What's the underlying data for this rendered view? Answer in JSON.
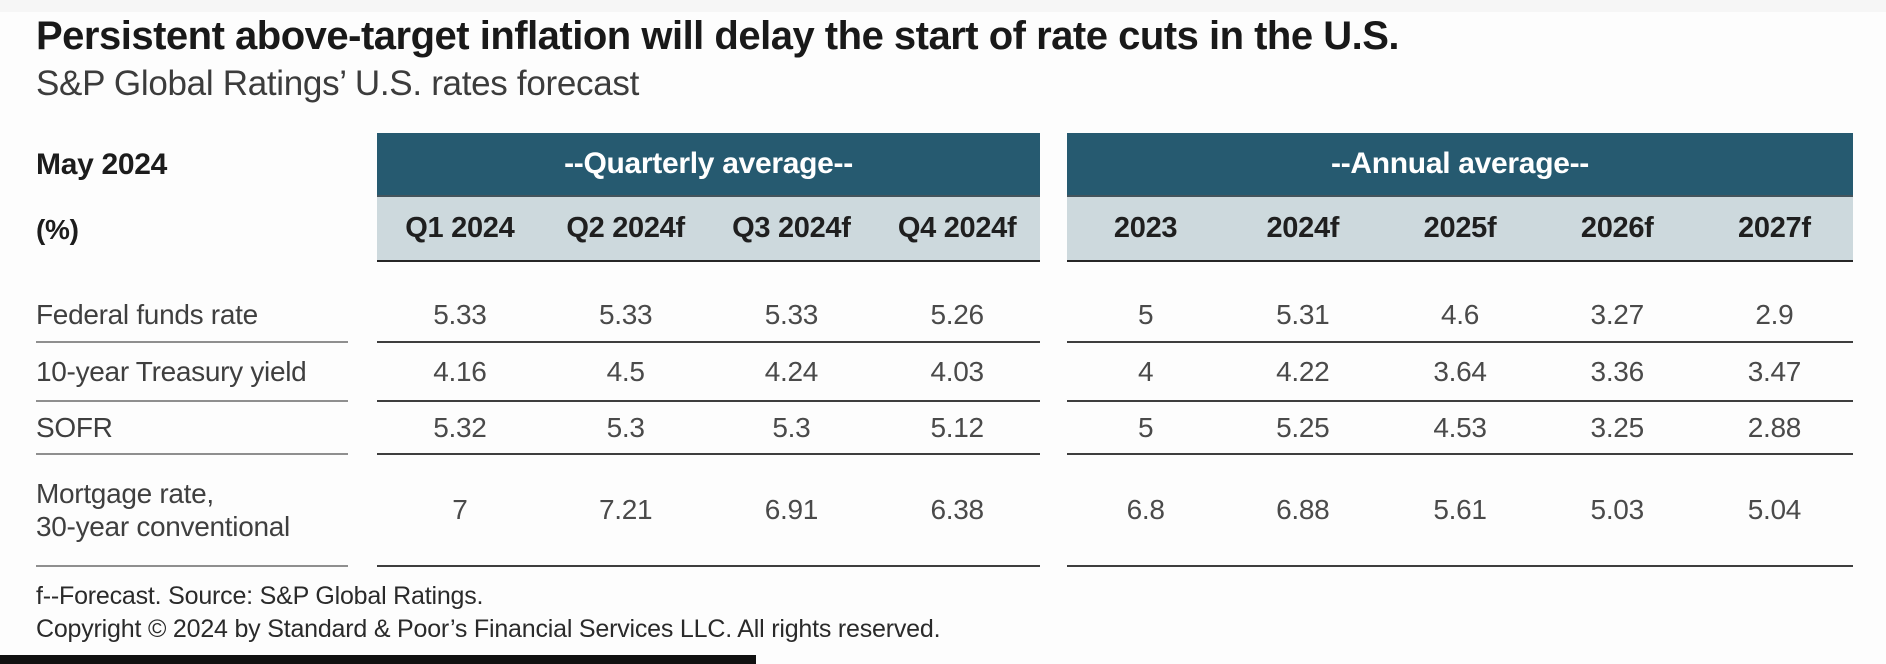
{
  "page": {
    "title": "Persistent above-target inflation will delay the start of rate cuts in the U.S.",
    "subtitle": "S&P Global Ratings’ U.S. rates forecast",
    "date_label": "May 2024",
    "unit_label": "(%)",
    "footnote": "f--Forecast. Source: S&P Global Ratings.",
    "copyright": "Copyright © 2024 by Standard & Poor’s Financial Services LLC. All rights reserved."
  },
  "colors": {
    "band_header_bg": "#265a70",
    "subheader_bg": "#cdd9dd",
    "header_text": "#ffffff",
    "body_text": "#4a4a4a",
    "row_border": "#3e3e3e",
    "label_border": "#8f8f8f"
  },
  "chart_data": {
    "type": "table",
    "title": "Persistent above-target inflation will delay the start of rate cuts in the U.S.",
    "subtitle": "S&P Global Ratings’ U.S. rates forecast",
    "as_of": "May 2024",
    "unit": "(%)",
    "groups": [
      {
        "header": "--Quarterly average--",
        "columns": [
          "Q1 2024",
          "Q2 2024f",
          "Q3 2024f",
          "Q4 2024f"
        ]
      },
      {
        "header": "--Annual average--",
        "columns": [
          "2023",
          "2024f",
          "2025f",
          "2026f",
          "2027f"
        ]
      }
    ],
    "rows": [
      {
        "label": "Federal funds rate",
        "quarterly": [
          5.33,
          5.33,
          5.33,
          5.26
        ],
        "annual": [
          5,
          5.31,
          4.6,
          3.27,
          2.9
        ]
      },
      {
        "label": "10-year Treasury yield",
        "quarterly": [
          4.16,
          4.5,
          4.24,
          4.03
        ],
        "annual": [
          4,
          4.22,
          3.64,
          3.36,
          3.47
        ]
      },
      {
        "label": "SOFR",
        "quarterly": [
          5.32,
          5.3,
          5.3,
          5.12
        ],
        "annual": [
          5,
          5.25,
          4.53,
          3.25,
          2.88
        ]
      },
      {
        "label": "Mortgage rate,\n30-year conventional",
        "quarterly": [
          7,
          7.21,
          6.91,
          6.38
        ],
        "annual": [
          6.8,
          6.88,
          5.61,
          5.03,
          5.04
        ]
      }
    ],
    "footnote": "f--Forecast. Source: S&P Global Ratings.",
    "copyright": "Copyright © 2024 by Standard & Poor’s Financial Services LLC. All rights reserved."
  }
}
